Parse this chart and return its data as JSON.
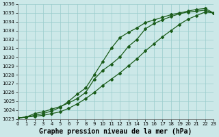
{
  "xlabel": "Graphe pression niveau de la mer (hPa)",
  "ylim": [
    1023,
    1036
  ],
  "xlim": [
    0,
    23
  ],
  "yticks": [
    1023,
    1024,
    1025,
    1026,
    1027,
    1028,
    1029,
    1030,
    1031,
    1032,
    1033,
    1034,
    1035,
    1036
  ],
  "xticks": [
    0,
    1,
    2,
    3,
    4,
    5,
    6,
    7,
    8,
    9,
    10,
    11,
    12,
    13,
    14,
    15,
    16,
    17,
    18,
    19,
    20,
    21,
    22,
    23
  ],
  "bg_color": "#cce8e8",
  "grid_color": "#99cccc",
  "line_color": "#1a5c1a",
  "line1_x": [
    0,
    1,
    2,
    3,
    4,
    5,
    6,
    7,
    8,
    9,
    10,
    11,
    12,
    13,
    14,
    15,
    16,
    17,
    18,
    19,
    20,
    21,
    22,
    23
  ],
  "line1_y": [
    1023.1,
    1023.2,
    1023.6,
    1023.8,
    1024.1,
    1024.4,
    1024.8,
    1025.3,
    1026.0,
    1027.5,
    1028.5,
    1029.2,
    1030.0,
    1031.2,
    1032.0,
    1033.2,
    1033.8,
    1034.2,
    1034.6,
    1034.9,
    1035.1,
    1035.2,
    1035.3,
    1035.0
  ],
  "line2_x": [
    0,
    1,
    2,
    3,
    4,
    5,
    6,
    7,
    8,
    9,
    10,
    11,
    12,
    13,
    14,
    15,
    16,
    17,
    18,
    19,
    20,
    21,
    22,
    23
  ],
  "line2_y": [
    1023.1,
    1023.2,
    1023.4,
    1023.6,
    1023.9,
    1024.3,
    1025.0,
    1025.8,
    1026.5,
    1028.0,
    1029.5,
    1031.0,
    1032.2,
    1032.8,
    1033.3,
    1033.9,
    1034.2,
    1034.5,
    1034.8,
    1035.0,
    1035.2,
    1035.4,
    1035.5,
    1035.0
  ],
  "line3_x": [
    0,
    1,
    2,
    3,
    4,
    5,
    6,
    7,
    8,
    9,
    10,
    11,
    12,
    13,
    14,
    15,
    16,
    17,
    18,
    19,
    20,
    21,
    22,
    23
  ],
  "line3_y": [
    1023.1,
    1023.2,
    1023.3,
    1023.4,
    1023.6,
    1023.8,
    1024.2,
    1024.7,
    1025.3,
    1026.0,
    1026.8,
    1027.5,
    1028.2,
    1029.0,
    1029.8,
    1030.7,
    1031.5,
    1032.3,
    1033.0,
    1033.7,
    1034.3,
    1034.7,
    1035.1,
    1035.0
  ],
  "marker": "D",
  "markersize": 2.0,
  "linewidth": 0.9,
  "xlabel_fontsize": 7,
  "tick_fontsize": 5.0
}
